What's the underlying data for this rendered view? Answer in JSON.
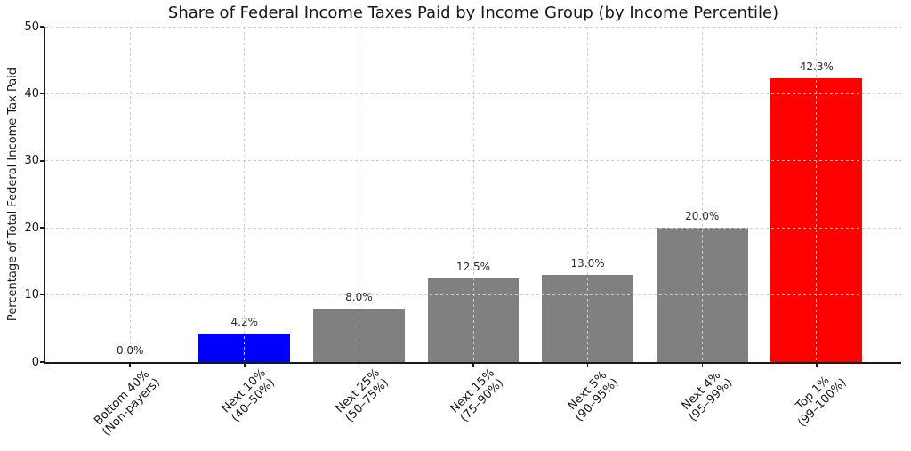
{
  "chart_data": {
    "type": "bar",
    "title": "Share of Federal Income Taxes Paid by Income Group (by Income Percentile)",
    "ylabel": "Percentage of Total Federal Income Tax Paid",
    "xlabel": "",
    "ylim": [
      0,
      50
    ],
    "yticks": [
      0,
      10,
      20,
      30,
      40,
      50
    ],
    "grid": true,
    "grid_style": "dashed, both axes, drawn above bars",
    "legend": false,
    "categories": [
      {
        "line1": "Bottom 40%",
        "line2": "(Non-payers)"
      },
      {
        "line1": "Next 10%",
        "line2": "(40–50%)"
      },
      {
        "line1": "Next 25%",
        "line2": "(50–75%)"
      },
      {
        "line1": "Next 15%",
        "line2": "(75–90%)"
      },
      {
        "line1": "Next 5%",
        "line2": "(90–95%)"
      },
      {
        "line1": "Next 4%",
        "line2": "(95–99%)"
      },
      {
        "line1": "Top 1%",
        "line2": "(99–100%)"
      }
    ],
    "values": [
      0.0,
      4.2,
      8.0,
      12.5,
      13.0,
      20.0,
      42.3
    ],
    "bar_labels": [
      "0.0%",
      "4.2%",
      "8.0%",
      "12.5%",
      "13.0%",
      "20.0%",
      "42.3%"
    ],
    "bar_colors": [
      "#808080",
      "#0000ff",
      "#808080",
      "#808080",
      "#808080",
      "#808080",
      "#ff0000"
    ],
    "colors": {
      "background": "#ffffff",
      "grid": "#cccccc",
      "axis": "#1a1a1a",
      "tick_text": "#171717",
      "value_label_text": "#2b2b2b",
      "gray_bar": "#808080",
      "highlight_blue": "#0000ff",
      "highlight_red": "#ff0000"
    }
  }
}
